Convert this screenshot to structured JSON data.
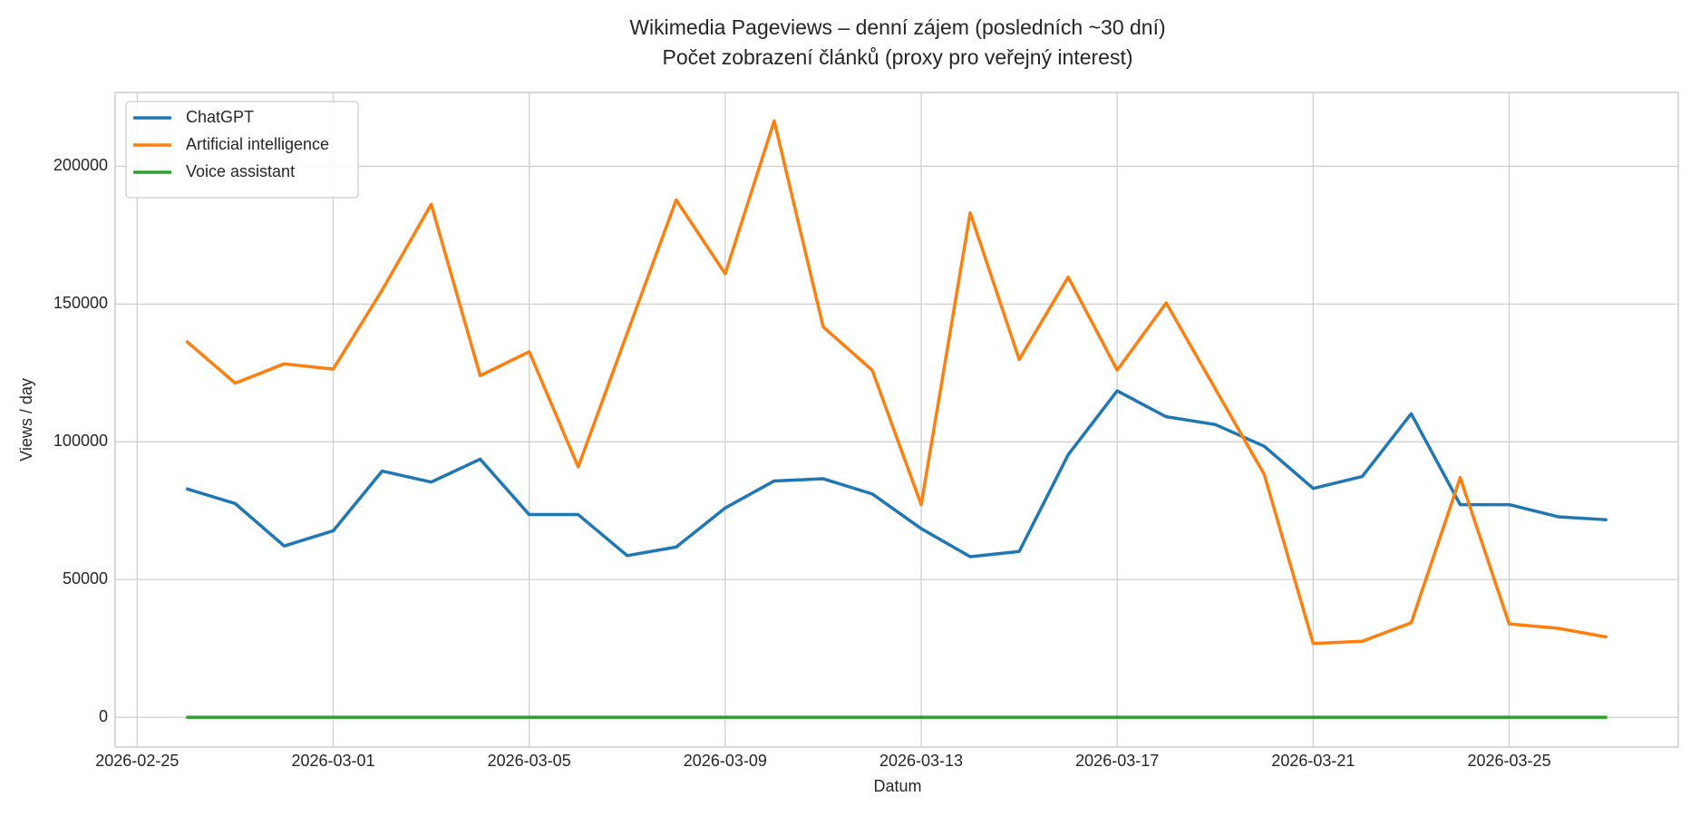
{
  "chart_data": {
    "type": "line",
    "title": "Wikimedia Pageviews – denní zájem (posledních ~30 dní)",
    "subtitle": "Počet zobrazení článků (proxy pro veřejný interest)",
    "xlabel": "Datum",
    "ylabel": "Views / day",
    "x": [
      "2026-02-26",
      "2026-02-27",
      "2026-02-28",
      "2026-03-01",
      "2026-03-02",
      "2026-03-03",
      "2026-03-04",
      "2026-03-05",
      "2026-03-06",
      "2026-03-07",
      "2026-03-08",
      "2026-03-09",
      "2026-03-10",
      "2026-03-11",
      "2026-03-12",
      "2026-03-13",
      "2026-03-14",
      "2026-03-15",
      "2026-03-16",
      "2026-03-17",
      "2026-03-18",
      "2026-03-19",
      "2026-03-20",
      "2026-03-21",
      "2026-03-22",
      "2026-03-23",
      "2026-03-24",
      "2026-03-25",
      "2026-03-26",
      "2026-03-27"
    ],
    "series": [
      {
        "name": "ChatGPT",
        "color": "#1f77b4",
        "values": [
          83000,
          77600,
          62200,
          67700,
          89400,
          85400,
          93700,
          73600,
          73600,
          58700,
          61800,
          76000,
          85800,
          86600,
          81100,
          68500,
          58300,
          60200,
          95300,
          118500,
          109100,
          106300,
          98400,
          83100,
          87400,
          110200,
          77200,
          77200,
          72800,
          71700
        ]
      },
      {
        "name": "Artificial intelligence",
        "color": "#ff7f0e",
        "values": [
          136600,
          121300,
          128300,
          126400,
          155100,
          186200,
          124000,
          132700,
          90900,
          139400,
          187800,
          161000,
          216500,
          141700,
          126000,
          77200,
          183100,
          129900,
          159800,
          126000,
          150400,
          119300,
          88200,
          26800,
          27600,
          34300,
          87000,
          33900,
          32300,
          29100
        ]
      },
      {
        "name": "Voice assistant",
        "color": "#2ca02c",
        "values": [
          0,
          0,
          0,
          0,
          0,
          0,
          0,
          0,
          0,
          0,
          0,
          0,
          0,
          0,
          0,
          0,
          0,
          0,
          0,
          0,
          0,
          0,
          0,
          0,
          0,
          0,
          0,
          0,
          0,
          0
        ]
      }
    ],
    "xlim": [
      "2026-02-24T13:12",
      "2026-03-28T10:48"
    ],
    "xticks": [
      "2026-02-25",
      "2026-03-01",
      "2026-03-05",
      "2026-03-09",
      "2026-03-13",
      "2026-03-17",
      "2026-03-21",
      "2026-03-25"
    ],
    "ylim": [
      -10800,
      226800
    ],
    "yticks": [
      0,
      50000,
      100000,
      150000,
      200000
    ],
    "grid": true,
    "legend": "upper left"
  }
}
